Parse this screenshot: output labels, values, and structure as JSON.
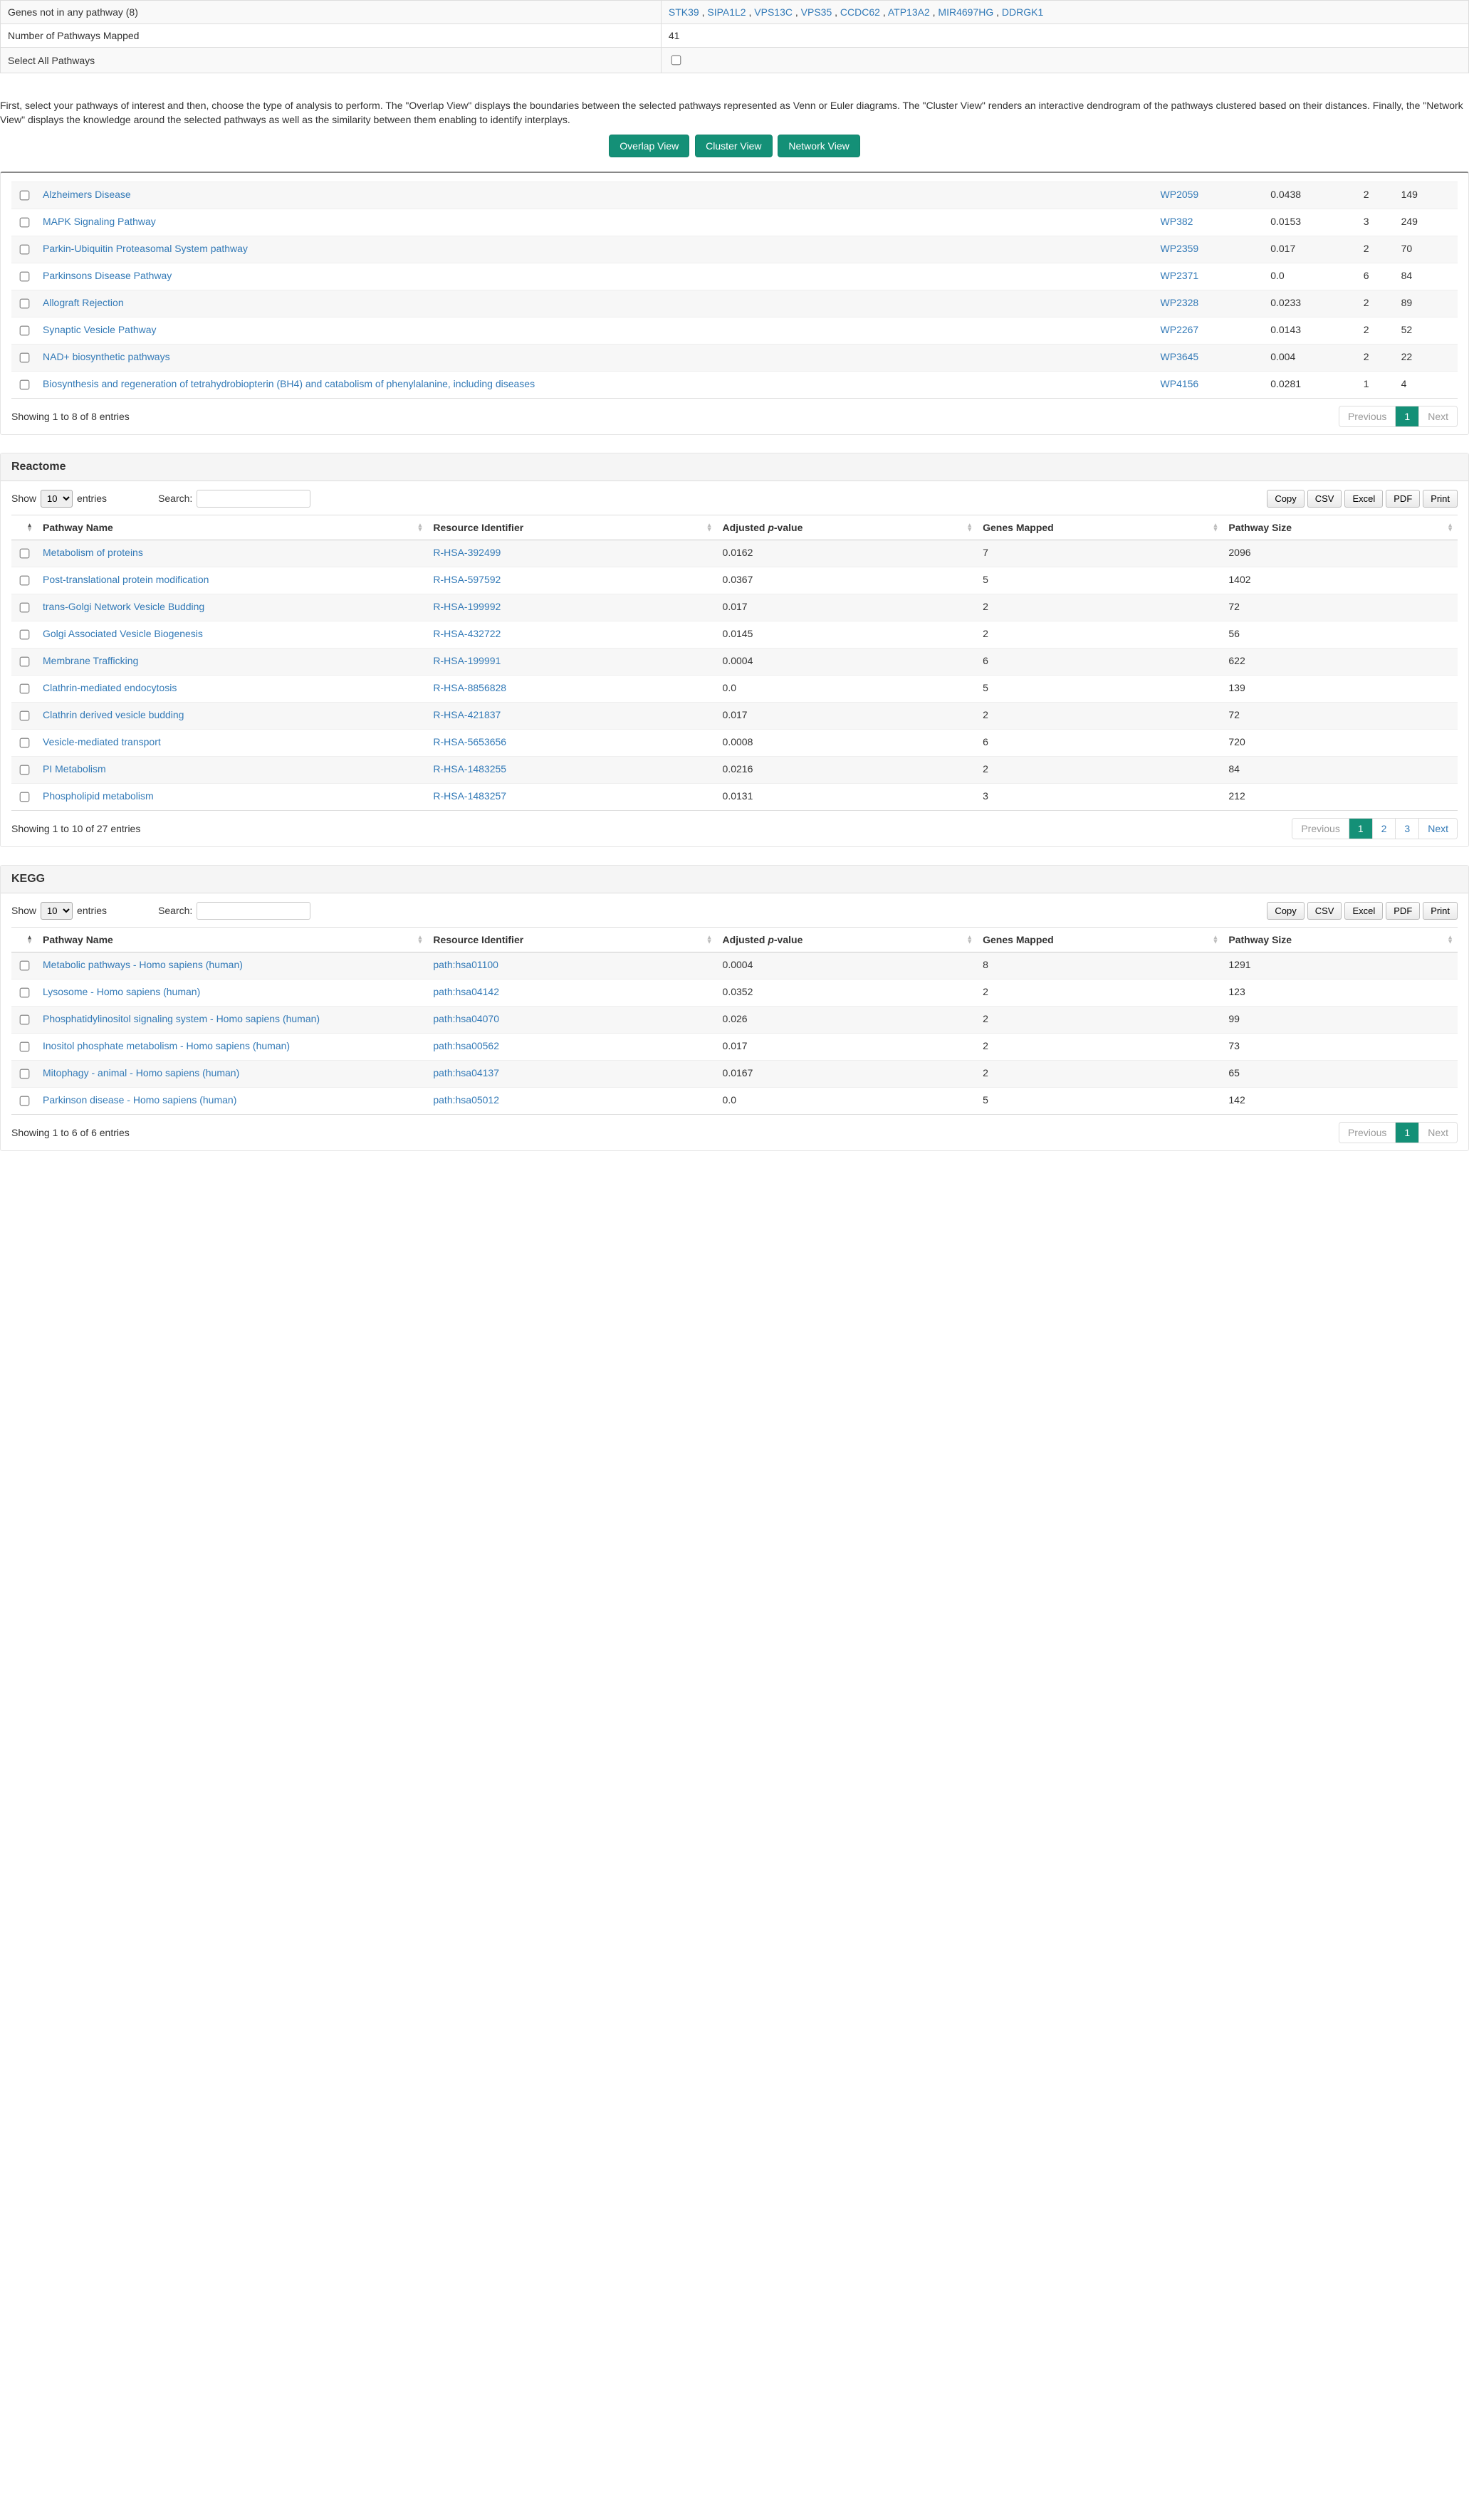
{
  "info": {
    "genes_not_in_pathway_label": "Genes not in any pathway (8)",
    "genes_not_in_pathway": [
      "STK39",
      "SIPA1L2",
      "VPS13C",
      "VPS35",
      "CCDC62",
      "ATP13A2",
      "MIR4697HG",
      "DDRGK1"
    ],
    "num_pathways_mapped_label": "Number of Pathways Mapped",
    "num_pathways_mapped_value": "41",
    "select_all_label": "Select All Pathways"
  },
  "instruction": "First, select your pathways of interest and then, choose the type of analysis to perform. The \"Overlap View\" displays the boundaries between the selected pathways represented as Venn or Euler diagrams. The \"Cluster View\" renders an interactive dendrogram of the pathways clustered based on their distances. Finally, the \"Network View\" displays the knowledge around the selected pathways as well as the similarity between them enabling to identify interplays.",
  "buttons": {
    "overlap": "Overlap View",
    "cluster": "Cluster View",
    "network": "Network View"
  },
  "columns": {
    "name": "Pathway Name",
    "id": "Resource Identifier",
    "pval_prefix": "Adjusted ",
    "pval_italic": "p",
    "pval_suffix": "-value",
    "mapped": "Genes Mapped",
    "size": "Pathway Size"
  },
  "controls": {
    "show": "Show",
    "entries": "entries",
    "search": "Search:",
    "length_value": "10",
    "copy": "Copy",
    "csv": "CSV",
    "excel": "Excel",
    "pdf": "PDF",
    "print": "Print",
    "previous": "Previous",
    "next": "Next"
  },
  "wikipathways": {
    "rows": [
      {
        "name": "Alzheimers Disease",
        "id": "WP2059",
        "pval": "0.0438",
        "mapped": "2",
        "size": "149"
      },
      {
        "name": "MAPK Signaling Pathway",
        "id": "WP382",
        "pval": "0.0153",
        "mapped": "3",
        "size": "249"
      },
      {
        "name": "Parkin-Ubiquitin Proteasomal System pathway",
        "id": "WP2359",
        "pval": "0.017",
        "mapped": "2",
        "size": "70"
      },
      {
        "name": "Parkinsons Disease Pathway",
        "id": "WP2371",
        "pval": "0.0",
        "mapped": "6",
        "size": "84"
      },
      {
        "name": "Allograft Rejection",
        "id": "WP2328",
        "pval": "0.0233",
        "mapped": "2",
        "size": "89"
      },
      {
        "name": "Synaptic Vesicle Pathway",
        "id": "WP2267",
        "pval": "0.0143",
        "mapped": "2",
        "size": "52"
      },
      {
        "name": "NAD+ biosynthetic pathways",
        "id": "WP3645",
        "pval": "0.004",
        "mapped": "2",
        "size": "22"
      },
      {
        "name": "Biosynthesis and regeneration of tetrahydrobiopterin (BH4) and catabolism of phenylalanine, including diseases",
        "id": "WP4156",
        "pval": "0.0281",
        "mapped": "1",
        "size": "4"
      }
    ],
    "info_text": "Showing 1 to 8 of 8 entries",
    "pages": [
      "1"
    ]
  },
  "reactome": {
    "title": "Reactome",
    "rows": [
      {
        "name": "Metabolism of proteins",
        "id": "R-HSA-392499",
        "pval": "0.0162",
        "mapped": "7",
        "size": "2096"
      },
      {
        "name": "Post-translational protein modification",
        "id": "R-HSA-597592",
        "pval": "0.0367",
        "mapped": "5",
        "size": "1402"
      },
      {
        "name": "trans-Golgi Network Vesicle Budding",
        "id": "R-HSA-199992",
        "pval": "0.017",
        "mapped": "2",
        "size": "72"
      },
      {
        "name": "Golgi Associated Vesicle Biogenesis",
        "id": "R-HSA-432722",
        "pval": "0.0145",
        "mapped": "2",
        "size": "56"
      },
      {
        "name": "Membrane Trafficking",
        "id": "R-HSA-199991",
        "pval": "0.0004",
        "mapped": "6",
        "size": "622"
      },
      {
        "name": "Clathrin-mediated endocytosis",
        "id": "R-HSA-8856828",
        "pval": "0.0",
        "mapped": "5",
        "size": "139"
      },
      {
        "name": "Clathrin derived vesicle budding",
        "id": "R-HSA-421837",
        "pval": "0.017",
        "mapped": "2",
        "size": "72"
      },
      {
        "name": "Vesicle-mediated transport",
        "id": "R-HSA-5653656",
        "pval": "0.0008",
        "mapped": "6",
        "size": "720"
      },
      {
        "name": "PI Metabolism",
        "id": "R-HSA-1483255",
        "pval": "0.0216",
        "mapped": "2",
        "size": "84"
      },
      {
        "name": "Phospholipid metabolism",
        "id": "R-HSA-1483257",
        "pval": "0.0131",
        "mapped": "3",
        "size": "212"
      }
    ],
    "info_text": "Showing 1 to 10 of 27 entries",
    "pages": [
      "1",
      "2",
      "3"
    ]
  },
  "kegg": {
    "title": "KEGG",
    "rows": [
      {
        "name": "Metabolic pathways - Homo sapiens (human)",
        "id": "path:hsa01100",
        "pval": "0.0004",
        "mapped": "8",
        "size": "1291"
      },
      {
        "name": "Lysosome - Homo sapiens (human)",
        "id": "path:hsa04142",
        "pval": "0.0352",
        "mapped": "2",
        "size": "123"
      },
      {
        "name": "Phosphatidylinositol signaling system - Homo sapiens (human)",
        "id": "path:hsa04070",
        "pval": "0.026",
        "mapped": "2",
        "size": "99"
      },
      {
        "name": "Inositol phosphate metabolism - Homo sapiens (human)",
        "id": "path:hsa00562",
        "pval": "0.017",
        "mapped": "2",
        "size": "73"
      },
      {
        "name": "Mitophagy - animal - Homo sapiens (human)",
        "id": "path:hsa04137",
        "pval": "0.0167",
        "mapped": "2",
        "size": "65"
      },
      {
        "name": "Parkinson disease - Homo sapiens (human)",
        "id": "path:hsa05012",
        "pval": "0.0",
        "mapped": "5",
        "size": "142"
      }
    ],
    "info_text": "Showing 1 to 6 of 6 entries",
    "pages": [
      "1"
    ]
  }
}
